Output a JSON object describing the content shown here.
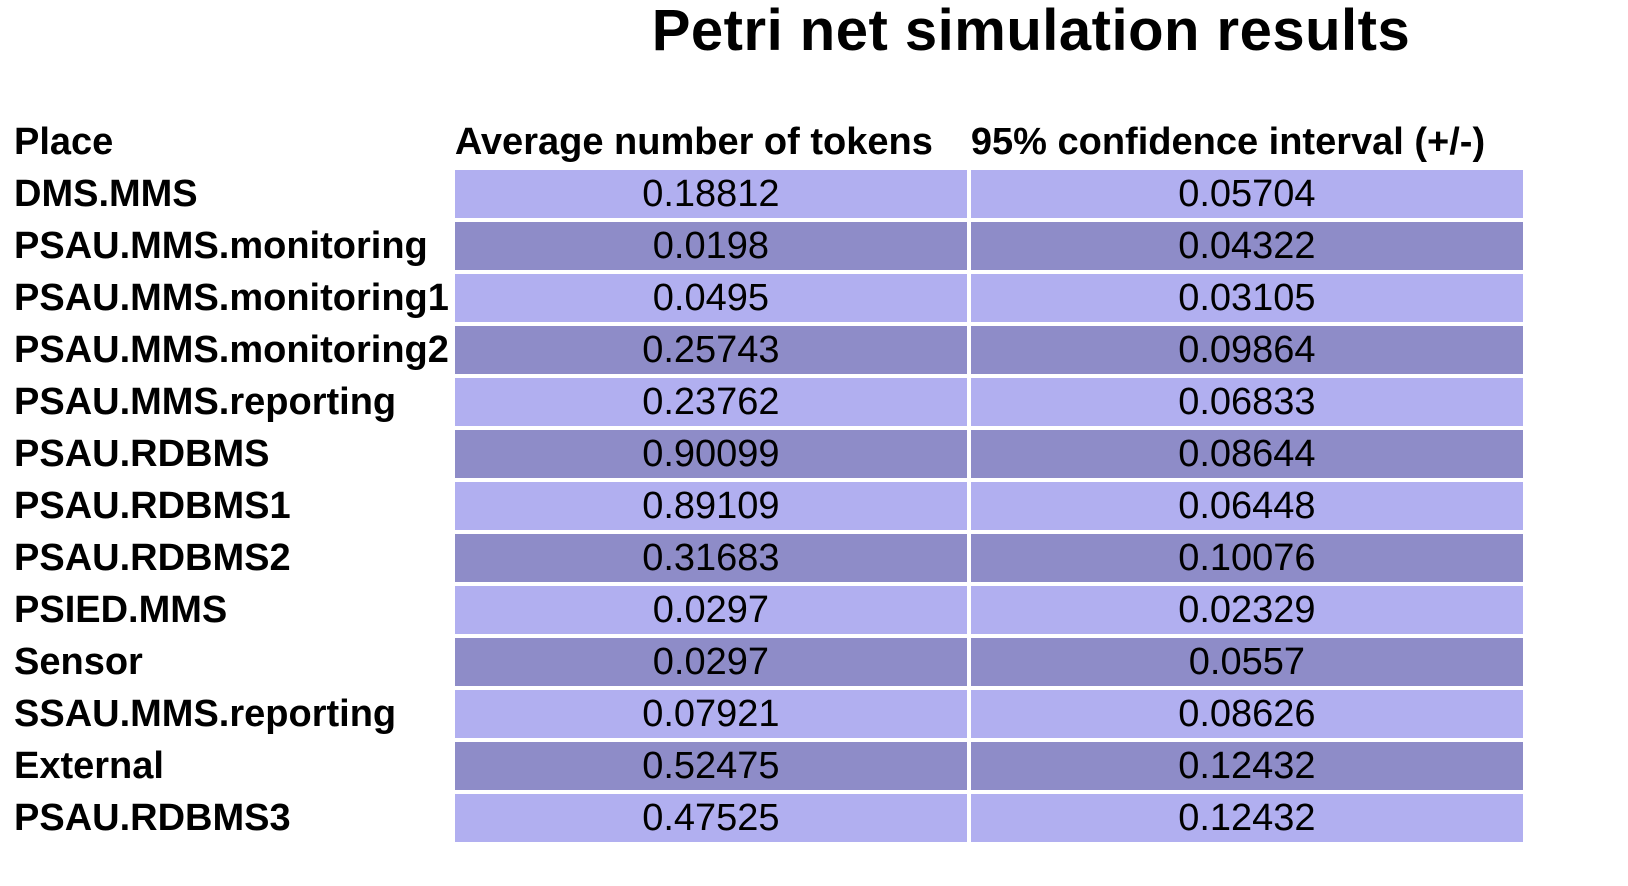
{
  "title": "Petri net simulation results",
  "colors": {
    "row_light": "#b1aff0",
    "row_dark": "#8e8cc8"
  },
  "headers": {
    "place": "Place",
    "avg_tokens": "Average number of tokens",
    "confidence": "95% confidence interval (+/-)"
  },
  "rows": [
    {
      "place": "DMS.MMS",
      "avg": "0.18812",
      "ci": "0.05704"
    },
    {
      "place": "PSAU.MMS.monitoring",
      "avg": "0.0198",
      "ci": "0.04322"
    },
    {
      "place": "PSAU.MMS.monitoring1",
      "avg": "0.0495",
      "ci": "0.03105"
    },
    {
      "place": "PSAU.MMS.monitoring2",
      "avg": "0.25743",
      "ci": "0.09864"
    },
    {
      "place": "PSAU.MMS.reporting",
      "avg": "0.23762",
      "ci": "0.06833"
    },
    {
      "place": "PSAU.RDBMS",
      "avg": "0.90099",
      "ci": "0.08644"
    },
    {
      "place": "PSAU.RDBMS1",
      "avg": "0.89109",
      "ci": "0.06448"
    },
    {
      "place": "PSAU.RDBMS2",
      "avg": "0.31683",
      "ci": "0.10076"
    },
    {
      "place": "PSIED.MMS",
      "avg": "0.0297",
      "ci": "0.02329"
    },
    {
      "place": "Sensor",
      "avg": "0.0297",
      "ci": "0.0557"
    },
    {
      "place": "SSAU.MMS.reporting",
      "avg": "0.07921",
      "ci": "0.08626"
    },
    {
      "place": "External",
      "avg": "0.52475",
      "ci": "0.12432"
    },
    {
      "place": "PSAU.RDBMS3",
      "avg": "0.47525",
      "ci": "0.12432"
    }
  ]
}
